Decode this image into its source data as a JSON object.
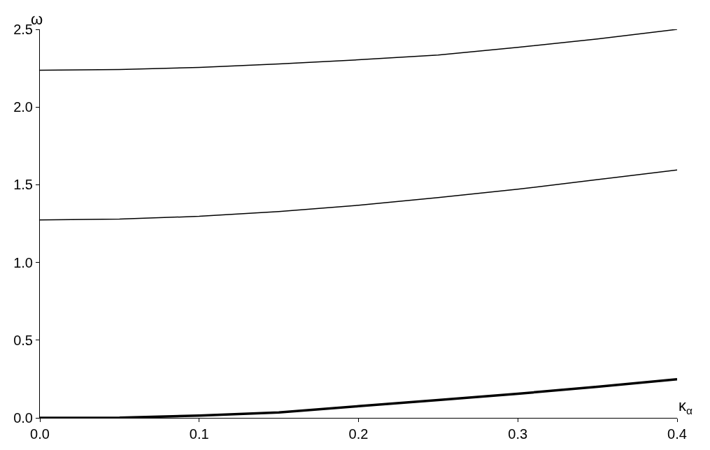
{
  "chart_data": {
    "type": "line",
    "xlabel": "κ$_{α}$",
    "ylabel": "ω",
    "x": [
      0,
      0.05,
      0.1,
      0.15,
      0.2,
      0.25,
      0.3,
      0.35,
      0.4
    ],
    "series": [
      {
        "color": "#000000",
        "values": [
          2.237,
          2.241,
          2.255,
          2.277,
          2.304,
          2.335,
          2.384,
          2.438,
          2.5
        ]
      },
      {
        "color": "#000000",
        "values": [
          1.274,
          1.279,
          1.297,
          1.328,
          1.368,
          1.417,
          1.471,
          1.533,
          1.595
        ]
      },
      {
        "color": "#000000",
        "values": [
          0,
          0.001,
          0.015,
          0.035,
          0.075,
          0.115,
          0.155,
          0.2,
          0.248
        ]
      }
    ],
    "xlim": [
      0,
      0.4
    ],
    "ylim": [
      0,
      2.5
    ],
    "xticks": [
      {
        "value": 0,
        "label": "0.0"
      },
      0.1,
      0.2,
      0.3,
      0.4
    ],
    "yticks": [
      {
        "value": 0,
        "label": "0.0"
      },
      0.5,
      {
        "value": 1,
        "label": "1.0"
      },
      1.5,
      {
        "value": 2,
        "label": "2.0"
      },
      2.5
    ],
    "marker": "none",
    "line_style": "solid"
  }
}
